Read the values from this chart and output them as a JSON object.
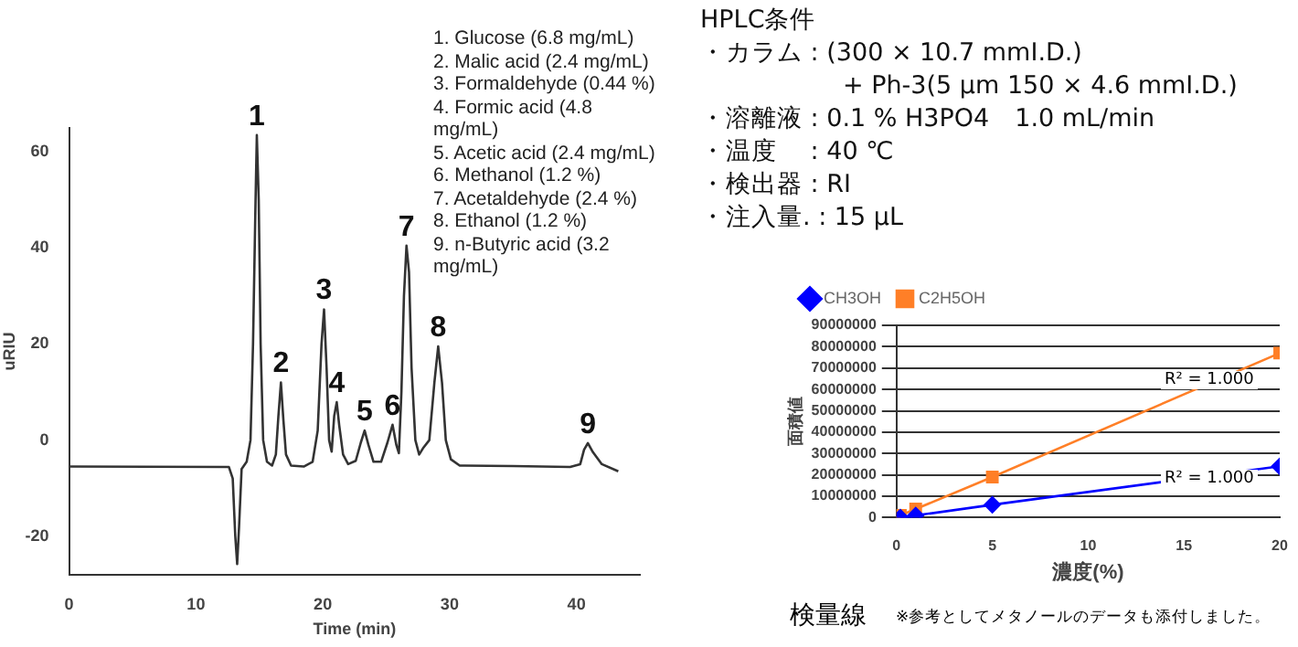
{
  "chart_data": [
    {
      "type": "line",
      "xlabel": "Time (min)",
      "ylabel": "uRIU",
      "color": "#333333",
      "marker": "none",
      "line_style": "solid",
      "grid": false,
      "legend": false,
      "x": [
        0,
        12.6,
        12.9,
        13.1,
        13.25,
        13.4,
        13.6,
        14.0,
        14.3,
        14.5,
        14.7,
        14.8,
        14.95,
        15.1,
        15.3,
        15.6,
        16.0,
        16.3,
        16.5,
        16.7,
        16.9,
        17.1,
        17.5,
        18.5,
        19.2,
        19.6,
        19.9,
        20.1,
        20.3,
        20.5,
        20.7,
        20.9,
        21.1,
        21.3,
        21.6,
        22.0,
        22.6,
        23.0,
        23.3,
        23.6,
        24.0,
        24.6,
        25.1,
        25.5,
        25.8,
        26.0,
        26.2,
        26.4,
        26.6,
        26.8,
        27.0,
        27.3,
        27.6,
        27.9,
        28.4,
        28.8,
        29.1,
        29.4,
        29.7,
        30.1,
        30.8,
        35,
        39.5,
        40.3,
        40.6,
        40.9,
        41.3,
        42,
        43.3
      ],
      "values": [
        -5.5,
        -5.6,
        -8,
        -20,
        -25.8,
        -18,
        -6,
        -4.5,
        0,
        20,
        50,
        63.5,
        50,
        20,
        0,
        -4.5,
        -5.3,
        -3,
        5,
        12,
        4,
        -3,
        -5.3,
        -5.5,
        -4.5,
        2,
        20,
        27.2,
        15,
        0,
        -2.4,
        5,
        7.9,
        3,
        -3,
        -5,
        -4.3,
        -0.5,
        2,
        -1,
        -4.5,
        -4.5,
        -0.5,
        3.2,
        -1,
        -2.7,
        10,
        30,
        40.5,
        35,
        15,
        0,
        -3,
        -1.7,
        0,
        12,
        19.5,
        12,
        0,
        -4,
        -5.3,
        -5.4,
        -5.6,
        -5,
        -2,
        -0.6,
        -2.5,
        -5,
        -6.5
      ],
      "xlim": [
        0,
        45
      ],
      "xticks": [
        0,
        10,
        20,
        30,
        40
      ],
      "ylim": [
        -28,
        65
      ],
      "yticks": [
        -20,
        0,
        20,
        40,
        60
      ],
      "annotations": [
        {
          "text": "1",
          "x": 14.8,
          "y": 63.5
        },
        {
          "text": "2",
          "x": 16.7,
          "y": 12
        },
        {
          "text": "3",
          "x": 20.1,
          "y": 27.2
        },
        {
          "text": "4",
          "x": 21.1,
          "y": 7.9
        },
        {
          "text": "5",
          "x": 23.3,
          "y": 2
        },
        {
          "text": "6",
          "x": 25.5,
          "y": 3.2
        },
        {
          "text": "7",
          "x": 26.6,
          "y": 40.5
        },
        {
          "text": "8",
          "x": 29.1,
          "y": 19.5
        },
        {
          "text": "9",
          "x": 40.9,
          "y": -0.6
        },
        "1. Glucose (6.8 mg/mL)",
        "2. Malic acid (2.4 mg/mL)",
        "3. Formaldehyde (0.44 %)",
        "4. Formic acid (4.8 mg/mL)",
        "5. Acetic acid (2.4 mg/mL)",
        "6. Methanol (1.2 %)",
        "7. Acetaldehyde (2.4 %)",
        "8. Ethanol (1.2 %)",
        "9. n-Butyric acid (3.2 mg/mL)"
      ]
    },
    {
      "type": "other",
      "title": "HPLC条件",
      "annotations": [
        "・カラム : (300 × 10.7 mmI.D.)",
        "+ Ph-3(5 µm 150 × 4.6 mmI.D.)",
        "・溶離液 : 0.1 % H3PO4　1.0 mL/min",
        "・温度　 : 40 ℃",
        "・検出器 : RI",
        "・注入量. : 15 µL"
      ]
    },
    {
      "type": "line",
      "title": "検量線",
      "xlabel": "濃度(%)",
      "ylabel": "面積値",
      "grid": "y",
      "legend": "top left",
      "line_style": "solid",
      "xlim": [
        0,
        20
      ],
      "xticks": [
        0,
        5,
        10,
        15,
        20
      ],
      "ylim": [
        0,
        90000000
      ],
      "yticks": [
        0,
        10000000,
        20000000,
        30000000,
        40000000,
        50000000,
        60000000,
        70000000,
        80000000,
        90000000
      ],
      "series": [
        {
          "name": "CH3OH",
          "color": "#0000ff",
          "marker": "diamond",
          "x": [
            0.2,
            1,
            5,
            20
          ],
          "values": [
            0,
            1000000,
            6000000,
            24000000
          ]
        },
        {
          "name": "C2H5OH",
          "color": "#ff7f27",
          "marker": "square",
          "x": [
            0.2,
            1,
            5,
            20
          ],
          "values": [
            1000000,
            4000000,
            19000000,
            77000000
          ]
        }
      ],
      "annotations": [
        "R² = 1.000",
        "R² = 1.000",
        "※参考としてメタノールのデータも添付しました。"
      ]
    }
  ]
}
